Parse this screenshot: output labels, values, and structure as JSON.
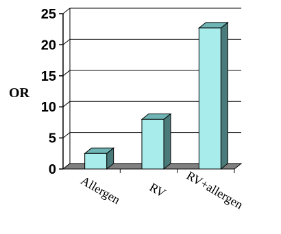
{
  "chart_data": {
    "type": "bar",
    "categories": [
      "Allergen",
      "RV",
      "RV+allergen"
    ],
    "values": [
      2.5,
      8,
      22.7
    ],
    "ylabel": "OR",
    "xlabel": "",
    "title": "",
    "ylim": [
      0,
      25
    ],
    "yticks": [
      "0",
      "5",
      "10",
      "15",
      "20",
      "25"
    ],
    "grid": true,
    "legend": "none",
    "colors": {
      "bar_front": "#a8ecec",
      "bar_side": "#4a7a7a",
      "bar_top": "#6fb5b5",
      "floor": "#808080",
      "axis": "#000000",
      "grid": "#000000"
    }
  }
}
